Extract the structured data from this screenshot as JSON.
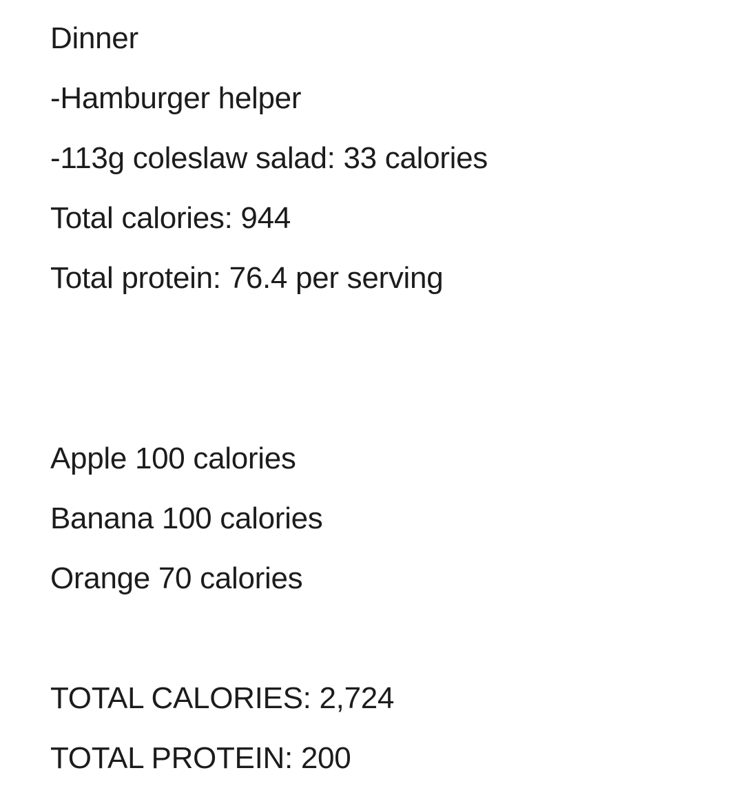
{
  "note": {
    "lines": [
      "Dinner",
      "-Hamburger helper",
      "-113g coleslaw salad: 33 calories",
      "Total calories: 944",
      "Total protein: 76.4 per serving",
      "Apple 100 calories",
      "Banana 100 calories",
      "Orange 70 calories",
      "TOTAL CALORIES: 2,724",
      "TOTAL PROTEIN: 200"
    ]
  }
}
